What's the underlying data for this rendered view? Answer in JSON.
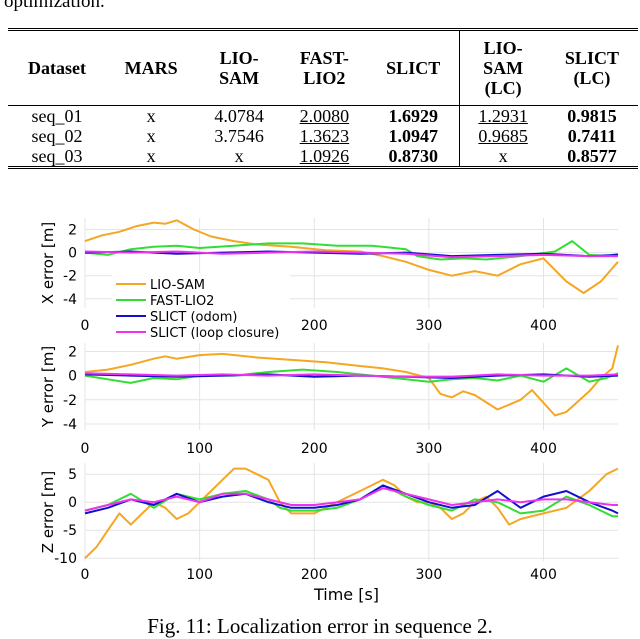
{
  "intro_tail": "optimization.",
  "table": {
    "headers": [
      {
        "lines": [
          "Dataset"
        ]
      },
      {
        "lines": [
          "MARS"
        ]
      },
      {
        "lines": [
          "LIO-",
          "SAM"
        ]
      },
      {
        "lines": [
          "FAST-",
          "LIO2"
        ]
      },
      {
        "lines": [
          "SLICT"
        ]
      },
      {
        "lines": [
          "LIO-",
          "SAM",
          "(LC)"
        ]
      },
      {
        "lines": [
          "SLICT",
          "(LC)"
        ]
      }
    ],
    "rows": [
      [
        "seq_01",
        "x",
        "4.0784",
        "2.0080",
        "1.6929",
        "1.2931",
        "0.9815"
      ],
      [
        "seq_02",
        "x",
        "3.7546",
        "1.3623",
        "1.0947",
        "0.9685",
        "0.7411"
      ],
      [
        "seq_03",
        "x",
        "x",
        "1.0926",
        "0.8730",
        "x",
        "0.8577"
      ]
    ]
  },
  "chart_data": [
    {
      "type": "line",
      "title": "",
      "xlabel": "",
      "ylabel": "X error [m]",
      "xlim": [
        0,
        465
      ],
      "ylim": [
        -4.8,
        3
      ],
      "xticks": [
        0,
        200,
        300,
        400
      ],
      "yticks": [
        2,
        0,
        -2,
        -4
      ],
      "legend": "bottom-left",
      "series": [
        {
          "name": "LIO-SAM",
          "color": "#f5a623",
          "x": [
            0,
            15,
            30,
            45,
            60,
            70,
            80,
            95,
            110,
            130,
            150,
            180,
            210,
            240,
            260,
            280,
            300,
            320,
            340,
            360,
            380,
            400,
            420,
            435,
            450,
            465
          ],
          "y": [
            1.0,
            1.5,
            1.8,
            2.3,
            2.6,
            2.5,
            2.8,
            2.0,
            1.4,
            1.0,
            0.7,
            0.5,
            0.2,
            0.1,
            -0.3,
            -0.8,
            -1.5,
            -2.0,
            -1.6,
            -2.0,
            -1.0,
            -0.5,
            -2.5,
            -3.5,
            -2.5,
            -0.8
          ]
        },
        {
          "name": "FAST-LIO2",
          "color": "#33dd33",
          "x": [
            0,
            20,
            40,
            60,
            80,
            100,
            130,
            160,
            190,
            220,
            250,
            280,
            290,
            310,
            330,
            350,
            380,
            410,
            425,
            440,
            455,
            465
          ],
          "y": [
            0.0,
            -0.2,
            0.3,
            0.5,
            0.6,
            0.4,
            0.6,
            0.8,
            0.8,
            0.6,
            0.6,
            0.3,
            -0.3,
            -0.6,
            -0.5,
            -0.6,
            -0.3,
            0.1,
            1.0,
            -0.2,
            -0.3,
            -0.1
          ]
        },
        {
          "name": "SLICT (odom)",
          "color": "#1111cc",
          "x": [
            0,
            40,
            80,
            120,
            160,
            200,
            240,
            280,
            320,
            360,
            400,
            440,
            465
          ],
          "y": [
            0.0,
            0.1,
            -0.1,
            0.0,
            0.1,
            0.0,
            -0.1,
            0.0,
            -0.3,
            -0.2,
            -0.1,
            -0.3,
            -0.2
          ]
        },
        {
          "name": "SLICT (loop closure)",
          "color": "#ee33ee",
          "x": [
            0,
            40,
            80,
            120,
            160,
            200,
            240,
            280,
            320,
            360,
            400,
            440,
            465
          ],
          "y": [
            0.1,
            0.0,
            0.1,
            -0.1,
            0.0,
            0.1,
            0.0,
            -0.1,
            -0.4,
            -0.3,
            -0.2,
            -0.3,
            -0.3
          ]
        }
      ]
    },
    {
      "type": "line",
      "title": "",
      "xlabel": "",
      "ylabel": "Y error [m]",
      "xlim": [
        0,
        465
      ],
      "ylim": [
        -4.5,
        2.7
      ],
      "xticks": [
        0,
        100,
        200,
        300,
        400
      ],
      "yticks": [
        2,
        0,
        -2,
        -4
      ],
      "series": [
        {
          "name": "LIO-SAM",
          "color": "#f5a623",
          "x": [
            0,
            20,
            40,
            60,
            70,
            80,
            100,
            120,
            150,
            180,
            210,
            240,
            260,
            280,
            300,
            310,
            320,
            330,
            340,
            360,
            380,
            390,
            410,
            420,
            440,
            450,
            460,
            465
          ],
          "y": [
            0.3,
            0.5,
            0.9,
            1.4,
            1.6,
            1.4,
            1.7,
            1.8,
            1.5,
            1.3,
            1.1,
            0.8,
            0.6,
            0.3,
            -0.2,
            -1.5,
            -1.8,
            -1.3,
            -1.6,
            -2.8,
            -2.0,
            -1.2,
            -3.3,
            -3.0,
            -1.3,
            -0.2,
            0.6,
            2.5
          ]
        },
        {
          "name": "FAST-LIO2",
          "color": "#33dd33",
          "x": [
            0,
            20,
            40,
            60,
            80,
            100,
            130,
            160,
            190,
            220,
            250,
            280,
            300,
            320,
            340,
            360,
            380,
            400,
            420,
            440,
            455,
            465
          ],
          "y": [
            0.0,
            -0.3,
            -0.6,
            -0.2,
            -0.3,
            0.0,
            0.0,
            0.3,
            0.5,
            0.3,
            0.0,
            -0.3,
            -0.5,
            -0.3,
            -0.2,
            -0.4,
            0.0,
            -0.5,
            0.6,
            -0.5,
            -0.2,
            0.2
          ]
        },
        {
          "name": "SLICT (odom)",
          "color": "#1111cc",
          "x": [
            0,
            40,
            80,
            120,
            160,
            200,
            240,
            280,
            320,
            360,
            400,
            440,
            465
          ],
          "y": [
            0.1,
            0.0,
            -0.1,
            0.0,
            0.1,
            -0.1,
            0.0,
            -0.1,
            -0.2,
            0.0,
            0.1,
            -0.1,
            0.0
          ]
        },
        {
          "name": "SLICT (loop closure)",
          "color": "#ee33ee",
          "x": [
            0,
            40,
            80,
            120,
            160,
            200,
            240,
            280,
            320,
            360,
            400,
            440,
            465
          ],
          "y": [
            0.2,
            0.1,
            0.0,
            0.1,
            0.0,
            0.1,
            0.0,
            -0.1,
            -0.1,
            0.1,
            0.0,
            0.0,
            0.1
          ]
        }
      ]
    },
    {
      "type": "line",
      "title": "",
      "xlabel": "Time [s]",
      "ylabel": "Z error [m]",
      "xlim": [
        0,
        465
      ],
      "ylim": [
        -10.5,
        7
      ],
      "xticks": [
        0,
        100,
        200,
        300,
        400
      ],
      "yticks": [
        5,
        0,
        -5,
        -10
      ],
      "series": [
        {
          "name": "LIO-SAM",
          "color": "#f5a623",
          "x": [
            0,
            10,
            20,
            30,
            40,
            50,
            60,
            70,
            80,
            90,
            100,
            110,
            120,
            130,
            140,
            150,
            160,
            170,
            180,
            190,
            200,
            210,
            220,
            230,
            240,
            250,
            260,
            270,
            280,
            290,
            300,
            310,
            320,
            330,
            340,
            350,
            360,
            370,
            380,
            400,
            420,
            440,
            455,
            465
          ],
          "y": [
            -10,
            -8,
            -5,
            -2,
            -4,
            -2,
            0,
            -1,
            -3,
            -2,
            0,
            2,
            4,
            6,
            6,
            5,
            4,
            0,
            -2,
            -2,
            -2,
            -1,
            0,
            1,
            2,
            3,
            4,
            3,
            1,
            0,
            0,
            -1,
            -3,
            -2,
            0,
            1,
            -1,
            -4,
            -3,
            -2,
            -1,
            2,
            5,
            6
          ]
        },
        {
          "name": "FAST-LIO2",
          "color": "#33dd33",
          "x": [
            0,
            20,
            40,
            60,
            80,
            100,
            120,
            140,
            160,
            170,
            180,
            200,
            220,
            240,
            260,
            280,
            300,
            320,
            340,
            360,
            380,
            400,
            420,
            440,
            460,
            465
          ],
          "y": [
            -1.5,
            -0.5,
            1.5,
            -1,
            1.5,
            0.5,
            1.5,
            2,
            0.5,
            -1,
            -1.5,
            -1.5,
            -1,
            0.5,
            3,
            1,
            -0.5,
            -1.5,
            0.5,
            0,
            -2,
            -1.5,
            1,
            -0.5,
            -2.5,
            -2.5
          ]
        },
        {
          "name": "SLICT (odom)",
          "color": "#1111cc",
          "x": [
            0,
            20,
            40,
            60,
            80,
            100,
            120,
            140,
            160,
            180,
            200,
            220,
            240,
            260,
            280,
            300,
            320,
            340,
            360,
            380,
            400,
            420,
            440,
            460,
            465
          ],
          "y": [
            -2,
            -1,
            0.5,
            -0.5,
            1.5,
            0,
            1,
            1.5,
            0,
            -1,
            -1,
            -0.5,
            0.5,
            3,
            1.5,
            0,
            -1,
            -0.5,
            2,
            -1,
            1,
            2,
            0,
            -1.5,
            -2
          ]
        },
        {
          "name": "SLICT (loop closure)",
          "color": "#ee33ee",
          "x": [
            0,
            20,
            40,
            60,
            80,
            100,
            120,
            140,
            160,
            180,
            200,
            220,
            240,
            260,
            280,
            300,
            320,
            340,
            360,
            380,
            400,
            420,
            440,
            460,
            465
          ],
          "y": [
            -1.5,
            -0.5,
            0.5,
            0,
            1,
            0,
            1.5,
            1.5,
            0.5,
            -0.5,
            -0.5,
            0,
            0.5,
            2.5,
            1.5,
            0.5,
            -0.5,
            0,
            0.5,
            0,
            0.5,
            0.5,
            0,
            -0.5,
            -0.5
          ]
        }
      ]
    }
  ],
  "caption": "Fig. 11: Localization error in sequence 2."
}
